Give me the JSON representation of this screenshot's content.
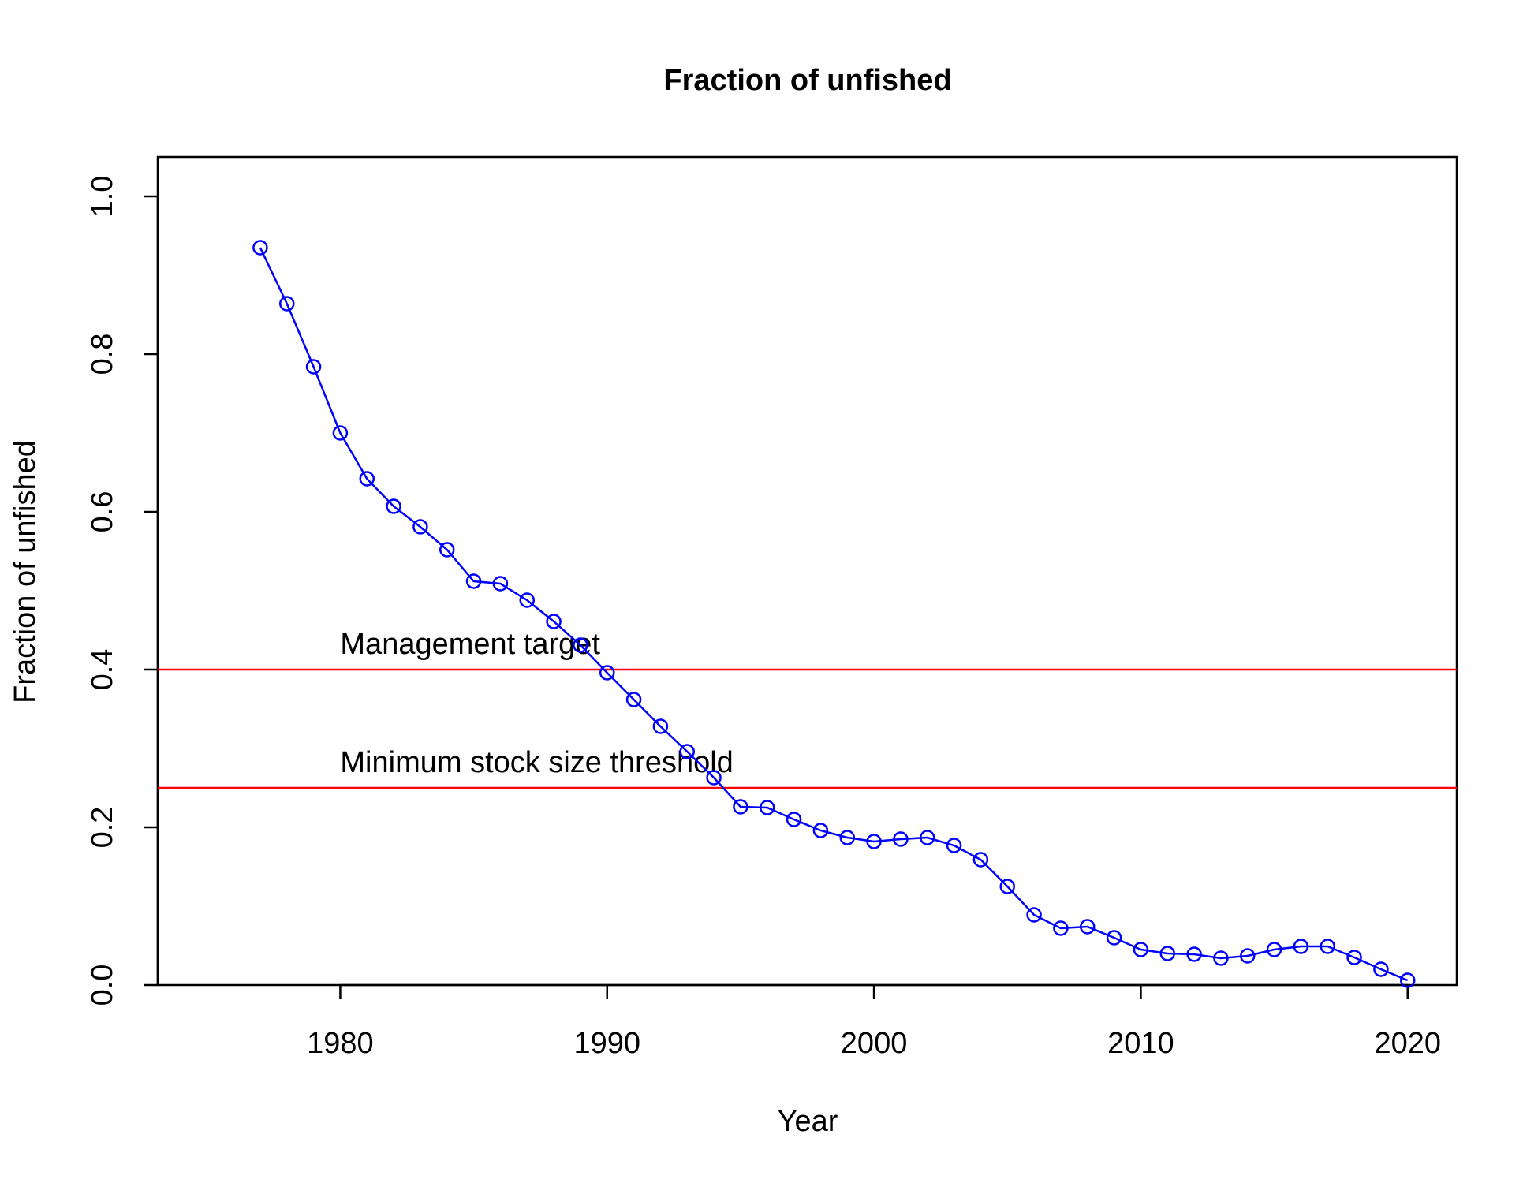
{
  "chart_data": {
    "type": "line",
    "title": "Fraction of unfished",
    "x_label": "Year",
    "y_label": "Fraction of unfished",
    "x": [
      1977,
      1978,
      1979,
      1980,
      1981,
      1982,
      1983,
      1984,
      1985,
      1986,
      1987,
      1988,
      1989,
      1990,
      1991,
      1992,
      1993,
      1994,
      1995,
      1996,
      1997,
      1998,
      1999,
      2000,
      2001,
      2002,
      2003,
      2004,
      2005,
      2006,
      2007,
      2008,
      2009,
      2010,
      2011,
      2012,
      2013,
      2014,
      2015,
      2016,
      2017,
      2018,
      2019,
      2020
    ],
    "values": [
      0.935,
      0.864,
      0.784,
      0.7,
      0.642,
      0.607,
      0.581,
      0.552,
      0.512,
      0.509,
      0.488,
      0.461,
      0.431,
      0.396,
      0.362,
      0.328,
      0.296,
      0.263,
      0.226,
      0.225,
      0.21,
      0.196,
      0.187,
      0.182,
      0.185,
      0.187,
      0.177,
      0.159,
      0.125,
      0.089,
      0.072,
      0.074,
      0.06,
      0.045,
      0.04,
      0.039,
      0.034,
      0.037,
      0.045,
      0.049,
      0.049,
      0.035,
      0.02,
      0.006
    ],
    "color": "#0000ff",
    "xlim": [
      1973.16,
      2021.84
    ],
    "xticks": [
      1980,
      1990,
      2000,
      2010,
      2020
    ],
    "ylim": [
      0,
      1.05
    ],
    "yticks": [
      {
        "value": 0,
        "label": "0.0"
      },
      0.2,
      0.4,
      0.6,
      0.8,
      {
        "value": 1,
        "label": "1.0"
      }
    ],
    "hlines": [
      {
        "value": 0.4,
        "label": "Management target",
        "label_x": 1980,
        "color": "#ff0000"
      },
      {
        "value": 0.25,
        "label": "Minimum stock size threshold",
        "label_x": 1980,
        "color": "#ff0000"
      }
    ]
  }
}
